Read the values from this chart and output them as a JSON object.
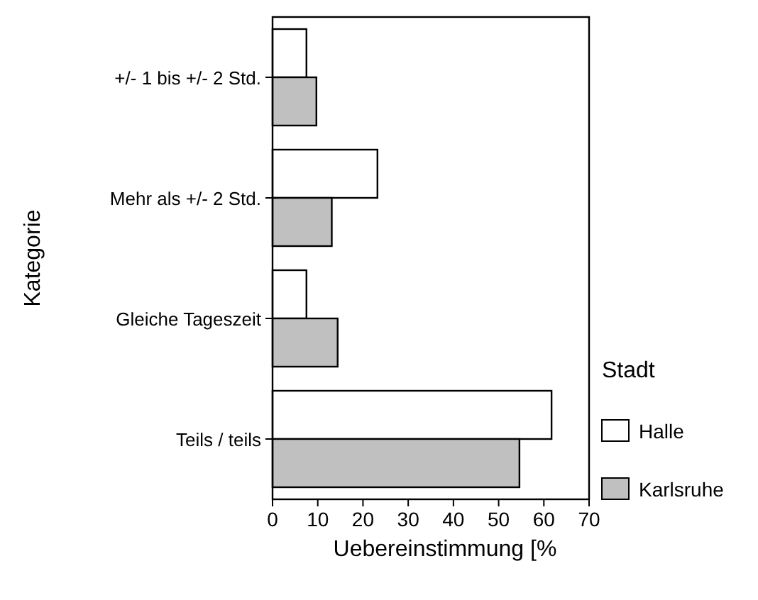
{
  "chart_data": {
    "type": "bar",
    "orientation": "horizontal",
    "xlabel": "Uebereinstimmung [%",
    "ylabel": "Kategorie",
    "legend_title": "Stadt",
    "legend": "right",
    "categories": [
      "+/- 1 bis +/- 2 Std.",
      "Mehr als +/- 2 Std.",
      "Gleiche Tageszeit",
      "Teils / teils"
    ],
    "series": [
      {
        "name": "Halle",
        "color": "#ffffff",
        "values": [
          7.5,
          23.2,
          7.5,
          61.7
        ]
      },
      {
        "name": "Karlsruhe",
        "color": "#c0c0c0",
        "values": [
          9.7,
          13.1,
          14.4,
          54.6
        ]
      }
    ],
    "xlim": [
      0,
      70
    ],
    "xticks": [
      0,
      10,
      20,
      30,
      40,
      50,
      60,
      70
    ],
    "grid": false
  }
}
